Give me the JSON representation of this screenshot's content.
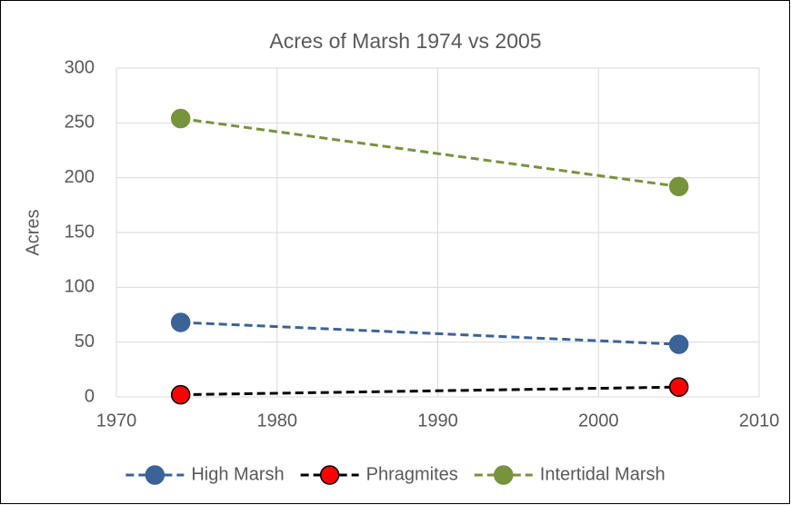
{
  "chart_data": {
    "type": "line",
    "title": "Acres of Marsh 1974 vs 2005",
    "y_label": "Acres",
    "x": [
      1974,
      2005
    ],
    "series": [
      {
        "name": "High Marsh",
        "color": "#3b6398",
        "values": [
          68,
          48
        ]
      },
      {
        "name": "Phragmites",
        "color": "#ff0000",
        "line_color": "#000000",
        "values": [
          2,
          9
        ]
      },
      {
        "name": "Intertidal Marsh",
        "color": "#77933c",
        "values": [
          254,
          192
        ]
      }
    ],
    "xlim": [
      1970,
      2010
    ],
    "xticks": [
      1970,
      1980,
      1990,
      2000,
      2010
    ],
    "ylim": [
      0,
      300
    ],
    "yticks": [
      0,
      50,
      100,
      150,
      200,
      250,
      300
    ],
    "grid": true,
    "legend": "bottom"
  }
}
